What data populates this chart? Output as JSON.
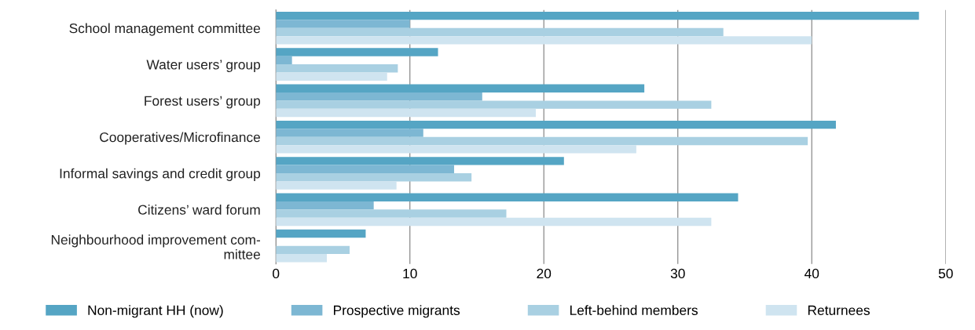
{
  "chart_data": {
    "type": "bar",
    "orientation": "horizontal",
    "categories": [
      "School management committee",
      "Water users’ group",
      "Forest users’ group",
      "Cooperatives/Microfinance",
      "Informal savings and credit group",
      "Citizens’ ward forum",
      "Neighbourhood improvement com-\nmittee"
    ],
    "series": [
      {
        "name": "Non-migrant HH (now)",
        "color": "#55a5c4",
        "values": [
          48,
          12.1,
          27.5,
          41.8,
          21.5,
          34.5,
          6.7
        ]
      },
      {
        "name": "Prospective migrants",
        "color": "#7db7d3",
        "values": [
          10,
          1.2,
          15.4,
          11,
          13.3,
          7.3,
          null
        ]
      },
      {
        "name": "Left-behind members",
        "color": "#a9d0e2",
        "values": [
          33.4,
          9.1,
          32.5,
          39.7,
          14.6,
          17.2,
          5.5
        ]
      },
      {
        "name": "Returnees",
        "color": "#cfe4f0",
        "values": [
          40,
          8.3,
          19.4,
          26.9,
          9,
          32.5,
          3.8
        ]
      }
    ],
    "xlim": [
      0,
      50
    ],
    "xticks": [
      0,
      10,
      20,
      30,
      40,
      50
    ],
    "grid": "x",
    "legend": "bottom"
  }
}
